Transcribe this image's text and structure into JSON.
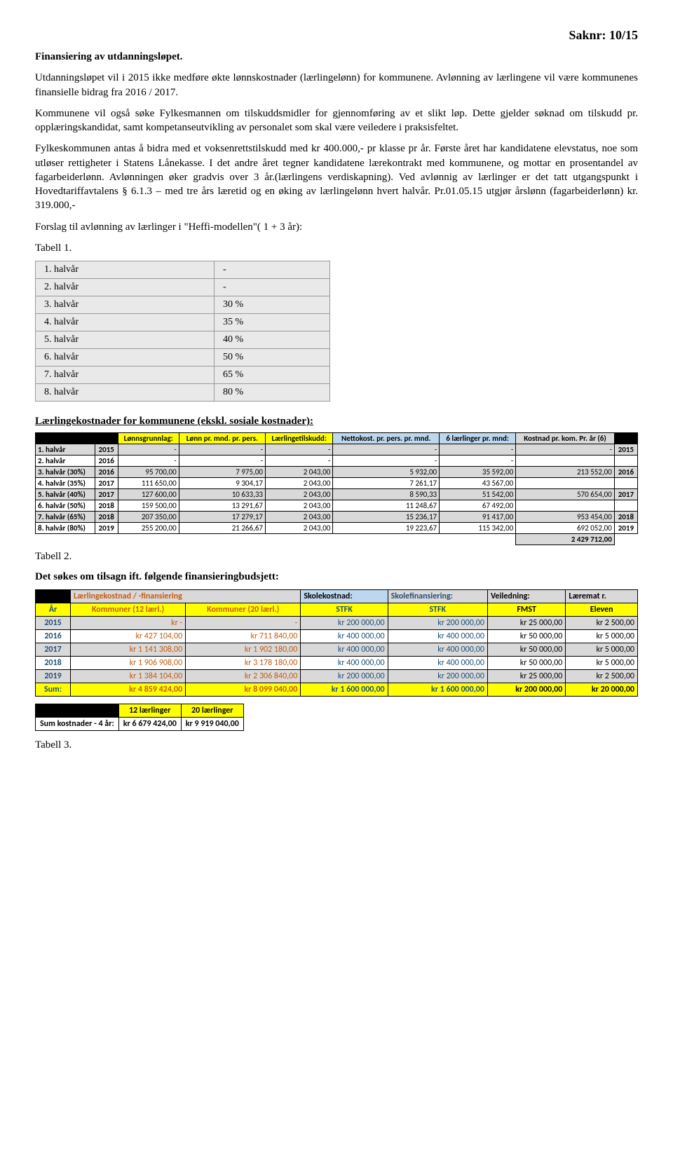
{
  "saknr": "Saknr: 10/15",
  "title": "Finansiering av utdanningsløpet.",
  "para1": "Utdanningsløpet vil i 2015 ikke medføre økte lønnskostnader (lærlingelønn) for kommunene. Avlønning av lærlingene vil være kommunenes finansielle bidrag fra 2016 / 2017.",
  "para2": "Kommunene vil også søke Fylkesmannen om tilskuddsmidler for gjennomføring av et slikt løp. Dette gjelder søknad om tilskudd pr. opplæringskandidat, samt kompetanseutvikling av personalet som skal være veiledere i praksisfeltet.",
  "para3": "Fylkeskommunen antas å  bidra med et voksenrettstilskudd med kr 400.000,- pr klasse pr år. Første året har kandidatene elevstatus, noe som utløser rettigheter i Statens Lånekasse.         I det andre året tegner kandidatene lærekontrakt med kommunene, og mottar en prosentandel av fagarbeiderlønn. Avlønningen øker gradvis over 3 år.(lærlingens verdiskapning). Ved avlønnig av lærlinger er det tatt utgangspunkt i Hovedtariffavtalens § 6.1.3 – med tre års læretid og en øking av lærlingelønn hvert halvår. Pr.01.05.15 utgjør årslønn (fagarbeiderlønn)  kr. 319.000,-",
  "para4": "Forslag til avlønning av lærlinger i \"Heffi-modellen\"( 1 + 3 år):",
  "tbl1_label": "Tabell 1.",
  "tbl1_rows": [
    [
      "1. halvår",
      "-"
    ],
    [
      "2. halvår",
      "-"
    ],
    [
      "3. halvår",
      "30 %"
    ],
    [
      "4. halvår",
      "35 %"
    ],
    [
      "5. halvår",
      "40 %"
    ],
    [
      "6. halvår",
      "50 %"
    ],
    [
      "7. halvår",
      "65 %"
    ],
    [
      "8. halvår",
      "80 %"
    ]
  ],
  "section2_heading": "Lærlingekostnader for kommunene (ekskl. sosiale kostnader):",
  "tbl2": {
    "header_colors": {
      "black": "#000000",
      "yellow": "#ffff00",
      "blue": "#bdd7ee",
      "grey": "#d9d9d9"
    },
    "headers": [
      "",
      "",
      "Lønnsgrunnlag:",
      "Lønn pr. mnd. pr. pers.",
      "Lærlingetilskudd:",
      "Nettokost. pr. pers. pr. mnd.",
      "6 lærlinger pr. mnd:",
      "Kostnad pr. kom. Pr. år (6)",
      ""
    ],
    "rows": [
      {
        "label": "1. halvår",
        "year": "2015",
        "c": [
          "-",
          "-",
          "-",
          "-",
          "-",
          "-",
          "2015"
        ],
        "bg": "#d9d9d9"
      },
      {
        "label": "2. halvår",
        "year": "2016",
        "c": [
          "-",
          "-",
          "-",
          "-",
          "-",
          "",
          ""
        ],
        "bg": "#ffffff"
      },
      {
        "label": "3. halvår (30%)",
        "year": "2016",
        "c": [
          "95 700,00",
          "7 975,00",
          "2 043,00",
          "5 932,00",
          "35 592,00",
          "213 552,00",
          "2016"
        ],
        "bg": "#d9d9d9"
      },
      {
        "label": "4. halvår (35%)",
        "year": "2017",
        "c": [
          "111 650,00",
          "9 304,17",
          "2 043,00",
          "7 261,17",
          "43 567,00",
          "",
          ""
        ],
        "bg": "#ffffff"
      },
      {
        "label": "5. halvår (40%)",
        "year": "2017",
        "c": [
          "127 600,00",
          "10 633,33",
          "2 043,00",
          "8 590,33",
          "51 542,00",
          "570 654,00",
          "2017"
        ],
        "bg": "#d9d9d9"
      },
      {
        "label": "6. halvår (50%)",
        "year": "2018",
        "c": [
          "159 500,00",
          "13 291,67",
          "2 043,00",
          "11 248,67",
          "67 492,00",
          "",
          ""
        ],
        "bg": "#ffffff"
      },
      {
        "label": "7. halvår (65%)",
        "year": "2018",
        "c": [
          "207 350,00",
          "17 279,17",
          "2 043,00",
          "15 236,17",
          "91 417,00",
          "953 454,00",
          "2018"
        ],
        "bg": "#d9d9d9"
      },
      {
        "label": "8. halvår (80%)",
        "year": "2019",
        "c": [
          "255 200,00",
          "21 266,67",
          "2 043,00",
          "19 223,67",
          "115 342,00",
          "692 052,00",
          "2019"
        ],
        "bg": "#ffffff"
      }
    ],
    "total_label": "",
    "total_value": "2 429 712,00"
  },
  "tbl2_label": "Tabell 2.",
  "section3_heading": "Det søkes om tilsagn ift. følgende finansieringbudsjett:",
  "tbl3": {
    "colors": {
      "black": "#000000",
      "yellow": "#ffff00",
      "blue": "#bdd7ee",
      "grey": "#d9d9d9",
      "orangeText": "#c55a11",
      "navyText": "#1f4e79"
    },
    "header1": [
      "",
      "Lærlingekostnad / -finansiering",
      "",
      "Skolekostnad:",
      "Skolefinansiering:",
      "Veiledning:",
      "Læremat r."
    ],
    "header2": [
      "År",
      "Kommuner (12 lærl.)",
      "Kommuner (20 lærl.)",
      "STFK",
      "STFK",
      "FMST",
      "Eleven"
    ],
    "rows": [
      {
        "year": "2015",
        "c": [
          "kr                      -",
          "                      -",
          "kr       200 000,00",
          "kr          200 000,00",
          "kr    25 000,00",
          "kr    2 500,00"
        ],
        "bg": "#d9d9d9"
      },
      {
        "year": "2016",
        "c": [
          "kr        427 104,00",
          "kr        711 840,00",
          "kr       400 000,00",
          "kr          400 000,00",
          "kr    50 000,00",
          "kr    5 000,00"
        ],
        "bg": "#ffffff"
      },
      {
        "year": "2017",
        "c": [
          "kr     1 141 308,00",
          "kr     1 902 180,00",
          "kr       400 000,00",
          "kr          400 000,00",
          "kr    50 000,00",
          "kr    5 000,00"
        ],
        "bg": "#d9d9d9"
      },
      {
        "year": "2018",
        "c": [
          "kr     1 906 908,00",
          "kr     3 178 180,00",
          "kr       400 000,00",
          "kr          400 000,00",
          "kr    50 000,00",
          "kr    5 000,00"
        ],
        "bg": "#ffffff"
      },
      {
        "year": "2019",
        "c": [
          "kr     1 384 104,00",
          "kr     2 306 840,00",
          "kr       200 000,00",
          "kr          200 000,00",
          "kr    25 000,00",
          "kr    2 500,00"
        ],
        "bg": "#d9d9d9"
      }
    ],
    "sum": {
      "label": "Sum:",
      "c": [
        "kr     4 859 424,00",
        "kr     8 099 040,00",
        "kr    1 600 000,00",
        "kr       1 600 000,00",
        "kr  200 000,00",
        "kr  20 000,00"
      ]
    }
  },
  "tbl4": {
    "headers": [
      "",
      "12 lærlinger",
      "20 lærlinger"
    ],
    "row": [
      "Sum kostnader - 4 år:",
      "kr        6 679 424,00",
      "kr    9 919 040,00"
    ]
  },
  "tbl3_label": "Tabell 3."
}
